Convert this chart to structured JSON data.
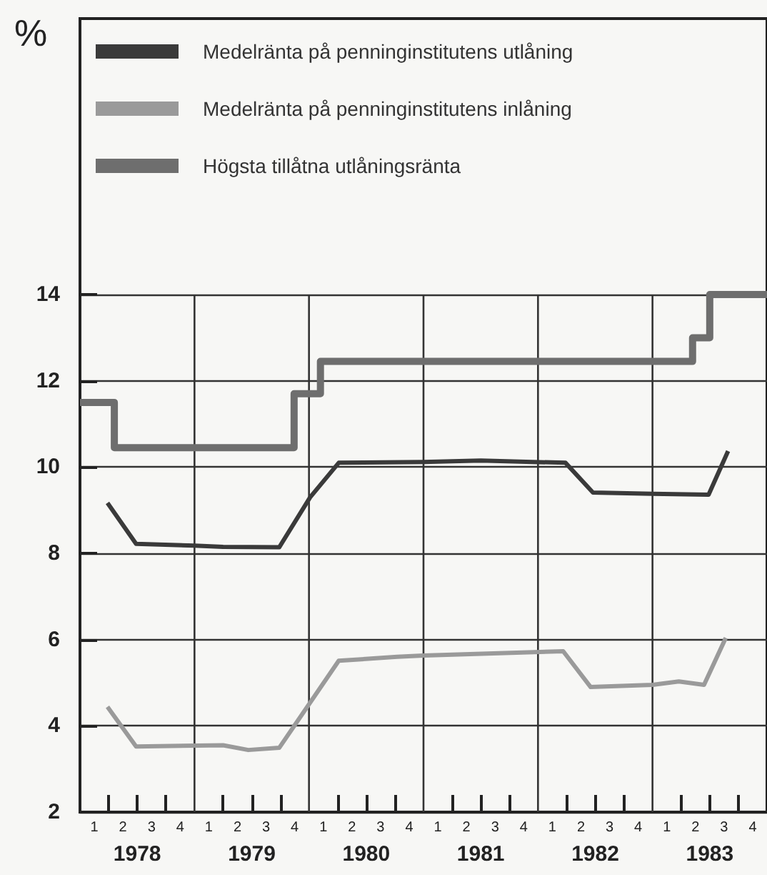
{
  "chart_data": {
    "type": "line",
    "ylabel": "%",
    "xlim": [
      1977.5,
      1983.5
    ],
    "ylim": [
      2,
      20.4
    ],
    "yticks": [
      2,
      4,
      6,
      8,
      10,
      12,
      14
    ],
    "xticks": [
      {
        "value": 1977.75,
        "label": null
      },
      1978,
      {
        "value": 1978.25,
        "label": null
      },
      {
        "value": 1978.75,
        "label": null
      },
      1979,
      {
        "value": 1979.25,
        "label": null
      },
      {
        "value": 1979.75,
        "label": null
      },
      1980,
      {
        "value": 1980.25,
        "label": null
      },
      {
        "value": 1980.75,
        "label": null
      },
      1981,
      {
        "value": 1981.25,
        "label": null
      },
      {
        "value": 1981.75,
        "label": null
      },
      1982,
      {
        "value": 1982.25,
        "label": null
      },
      {
        "value": 1982.75,
        "label": null
      },
      1983,
      {
        "value": 1983.25,
        "label": null
      }
    ],
    "annotations": [
      "1",
      "2",
      "3",
      "4",
      "1",
      "2",
      "3",
      "4",
      "1",
      "2",
      "3",
      "4",
      "1",
      "2",
      "3",
      "4",
      "1",
      "2",
      "3",
      "4",
      "1",
      "2",
      "3",
      "4"
    ],
    "grid": true,
    "legend": "top left",
    "marker": "none",
    "line_style": "solid",
    "series": [
      {
        "name": "Medelränta på penninginstitutens utlåning",
        "color": "#3a3a3a",
        "x": [
          1977.74,
          1977.99,
          1978.5,
          1978.75,
          1979.24,
          1979.51,
          1979.76,
          1980.5,
          1981.0,
          1981.74,
          1981.98,
          1982.5,
          1982.99,
          1983.16
        ],
        "values": [
          9.17,
          8.22,
          8.18,
          8.15,
          8.14,
          9.3,
          10.1,
          10.12,
          10.15,
          10.1,
          9.41,
          9.38,
          9.36,
          10.37
        ]
      },
      {
        "name": "Medelränta på penninginstitutens inlåning",
        "color": "#9a9a9a",
        "x": [
          1977.74,
          1977.99,
          1978.75,
          1978.97,
          1979.24,
          1979.76,
          1980.27,
          1980.5,
          1981.72,
          1981.96,
          1982.5,
          1982.73,
          1982.95,
          1983.14
        ],
        "values": [
          4.44,
          3.52,
          3.55,
          3.44,
          3.49,
          5.51,
          5.6,
          5.63,
          5.73,
          4.9,
          4.95,
          5.03,
          4.95,
          6.04
        ]
      },
      {
        "name": "Högsta tillåtna utlåningsränta",
        "type": "step",
        "color": "#6e6e6e",
        "x": [
          1977.5,
          1977.8,
          1979.37,
          1979.6,
          1982.85,
          1983.0,
          1983.5
        ],
        "values": [
          11.5,
          10.45,
          11.7,
          12.45,
          13,
          14,
          14
        ]
      }
    ]
  }
}
